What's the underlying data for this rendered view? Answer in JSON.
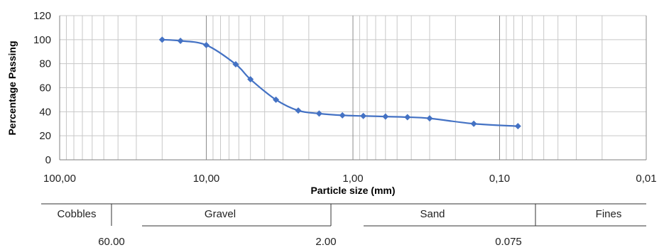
{
  "chart_data": {
    "type": "line",
    "xlabel": "Particle size (mm)",
    "ylabel": "Percentage Passing",
    "x_scale": "log",
    "x_reversed": true,
    "xlim": [
      100,
      0.01
    ],
    "ylim": [
      0,
      120
    ],
    "x_tick_labels": [
      {
        "value": 100,
        "label": "100,00"
      },
      {
        "value": 10,
        "label": "10,00"
      },
      {
        "value": 1,
        "label": "1,00"
      },
      {
        "value": 0.1,
        "label": "0,10"
      },
      {
        "value": 0.01,
        "label": "0,01"
      }
    ],
    "y_ticks": [
      0,
      20,
      40,
      60,
      80,
      100,
      120
    ],
    "grid": true,
    "series_color": "#4472C4",
    "series": [
      {
        "x": [
          20,
          15,
          10,
          6.3,
          5,
          3.35,
          2.36,
          1.7,
          1.18,
          0.85,
          0.6,
          0.425,
          0.3,
          0.15,
          0.075
        ],
        "values": [
          100,
          99,
          95.5,
          79.5,
          67,
          50,
          41,
          38.5,
          37,
          36.5,
          36,
          35.5,
          34.5,
          30,
          28
        ]
      }
    ],
    "classification": {
      "labels": [
        "Cobbles",
        "Gravel",
        "Sand",
        "Fines"
      ],
      "boundaries": [
        "60.00",
        "2.00",
        "0.075"
      ]
    }
  }
}
